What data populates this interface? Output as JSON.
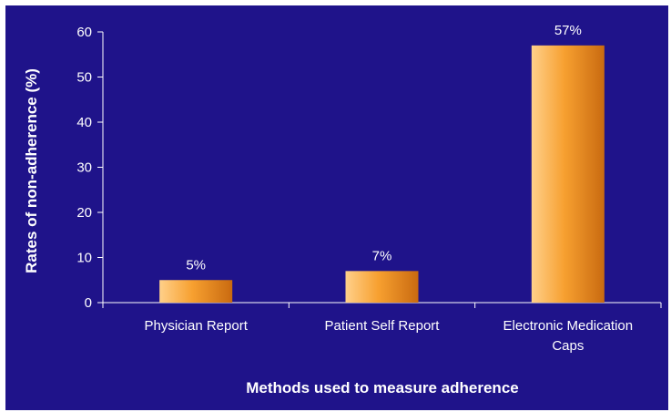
{
  "chart_data": {
    "type": "bar",
    "categories": [
      "Physician Report",
      "Patient Self Report",
      "Electronic Medication Caps"
    ],
    "category_lines": [
      [
        "Physician Report"
      ],
      [
        "Patient Self Report"
      ],
      [
        "Electronic Medication",
        "Caps"
      ]
    ],
    "values": [
      5,
      7,
      57
    ],
    "data_labels": [
      "5%",
      "7%",
      "57%"
    ],
    "xlabel": "Methods used to measure adherence",
    "ylabel": "Rates of non-adherence (%)",
    "ylim": [
      0,
      60
    ],
    "yticks": [
      0,
      10,
      20,
      30,
      40,
      50,
      60
    ],
    "grid": false,
    "legend": "none"
  },
  "colors": {
    "background": "#1f138a",
    "bar_light": "#ffd08a",
    "bar_mid": "#f7a030",
    "bar_dark": "#c96a10",
    "axis": "#ffffff",
    "text": "#ffffff"
  }
}
